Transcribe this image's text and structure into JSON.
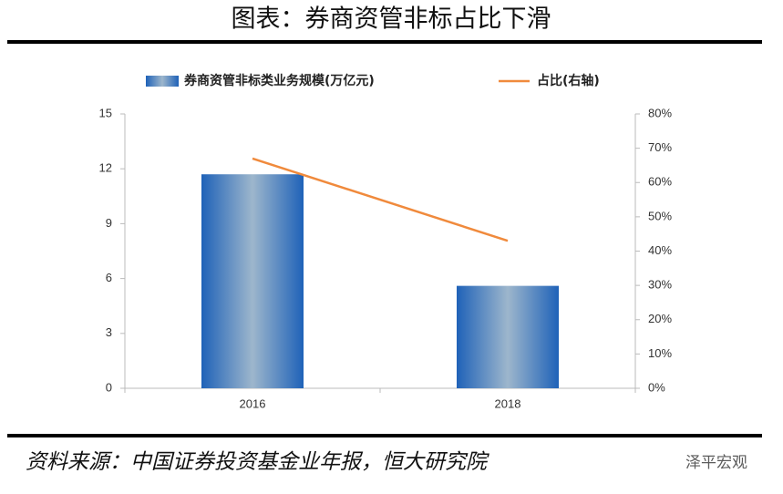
{
  "chart_data": {
    "type": "bar",
    "title": "图表：券商资管非标占比下滑",
    "categories": [
      "2016",
      "2018"
    ],
    "series": [
      {
        "name": "券商资管非标类业务规模(万亿元)",
        "type": "bar",
        "color": "#1f62b8",
        "values": [
          11.7,
          5.6
        ]
      },
      {
        "name": "占比(右轴)",
        "type": "line",
        "axis": "y2",
        "color": "#f08a3c",
        "values": [
          67,
          43
        ]
      }
    ],
    "ylim": [
      0,
      15
    ],
    "yticks": [
      0,
      3,
      6,
      9,
      12,
      15
    ],
    "y2lim": [
      0,
      80
    ],
    "y2ticks": [
      {
        "value": 0,
        "label": "0%"
      },
      {
        "value": 10,
        "label": "10%"
      },
      {
        "value": 20,
        "label": "20%"
      },
      {
        "value": 30,
        "label": "30%"
      },
      {
        "value": 40,
        "label": "40%"
      },
      {
        "value": 50,
        "label": "50%"
      },
      {
        "value": 60,
        "label": "60%"
      },
      {
        "value": 70,
        "label": "70%"
      },
      {
        "value": 80,
        "label": "80%"
      }
    ],
    "grid": false,
    "legend": "top",
    "source": "资料来源：中国证券投资基金业年报，恒大研究院",
    "watermark": "泽平宏观"
  }
}
